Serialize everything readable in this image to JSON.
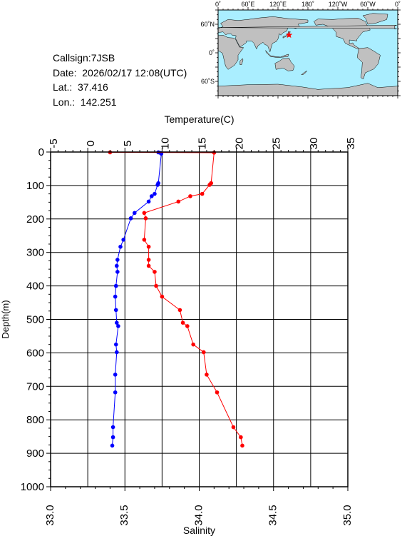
{
  "station": {
    "callsign": "Callsign:7JSB",
    "date": "Date:  2026/02/17 12:08(UTC)",
    "lat": "Lat.:  37.416",
    "lon": "Lon.:  142.251"
  },
  "map": {
    "lon_labels": [
      "0˚",
      "60˚E",
      "120˚E",
      "180˚",
      "120˚W",
      "60˚W",
      "0˚"
    ],
    "lat_labels": [
      "60˚N",
      "0˚",
      "60˚S"
    ],
    "ocean_color": "#aaeeff",
    "land_color": "#c0c0c0",
    "marker": {
      "lat": 37.416,
      "lon": 142.251,
      "color": "#ff0000",
      "symbol": "star"
    }
  },
  "chart_data": {
    "type": "line",
    "top_axis_label": "Temperature(C)",
    "bottom_axis_label": "Salinity",
    "ylabel": "Depth(m)",
    "temperature_ticks": [
      "-5",
      "0",
      "5",
      "10",
      "15",
      "20",
      "25",
      "30",
      "35"
    ],
    "salinity_ticks": [
      "33.0",
      "33.5",
      "34.0",
      "34.5",
      "35.0"
    ],
    "depth_ticks": [
      "0",
      "100",
      "200",
      "300",
      "400",
      "500",
      "600",
      "700",
      "800",
      "900",
      "1000"
    ],
    "temperature_range": [
      -5,
      35
    ],
    "salinity_range": [
      33.0,
      35.0
    ],
    "depth_range": [
      0,
      1000
    ],
    "depth_inverted": true,
    "grid": true,
    "series": [
      {
        "color": "#0000ff",
        "axis": "temperature",
        "points": [
          {
            "t": 9.5,
            "d": 1
          },
          {
            "t": 9.8,
            "d": 3
          },
          {
            "t": 9.9,
            "d": 5
          },
          {
            "t": 9.5,
            "d": 93
          },
          {
            "t": 9.4,
            "d": 98
          },
          {
            "t": 9.0,
            "d": 125
          },
          {
            "t": 8.6,
            "d": 132
          },
          {
            "t": 8.2,
            "d": 148
          },
          {
            "t": 6.3,
            "d": 182
          },
          {
            "t": 5.8,
            "d": 198
          },
          {
            "t": 4.8,
            "d": 262
          },
          {
            "t": 4.4,
            "d": 283
          },
          {
            "t": 4.0,
            "d": 322
          },
          {
            "t": 3.9,
            "d": 340
          },
          {
            "t": 4.0,
            "d": 358
          },
          {
            "t": 3.8,
            "d": 400
          },
          {
            "t": 3.7,
            "d": 432
          },
          {
            "t": 3.8,
            "d": 472
          },
          {
            "t": 3.9,
            "d": 510
          },
          {
            "t": 4.1,
            "d": 520
          },
          {
            "t": 3.8,
            "d": 575
          },
          {
            "t": 3.9,
            "d": 598
          },
          {
            "t": 3.7,
            "d": 665
          },
          {
            "t": 3.7,
            "d": 718
          },
          {
            "t": 3.4,
            "d": 822
          },
          {
            "t": 3.4,
            "d": 852
          },
          {
            "t": 3.3,
            "d": 877
          }
        ]
      },
      {
        "color": "#ff0000",
        "axis": "salinity",
        "points": [
          {
            "s": 33.4,
            "d": 1
          },
          {
            "s": 34.1,
            "d": 2
          },
          {
            "s": 34.08,
            "d": 93
          },
          {
            "s": 34.07,
            "d": 98
          },
          {
            "s": 34.02,
            "d": 125
          },
          {
            "s": 33.94,
            "d": 132
          },
          {
            "s": 33.86,
            "d": 148
          },
          {
            "s": 33.63,
            "d": 182
          },
          {
            "s": 33.64,
            "d": 198
          },
          {
            "s": 33.63,
            "d": 262
          },
          {
            "s": 33.66,
            "d": 283
          },
          {
            "s": 33.66,
            "d": 322
          },
          {
            "s": 33.66,
            "d": 340
          },
          {
            "s": 33.7,
            "d": 358
          },
          {
            "s": 33.71,
            "d": 400
          },
          {
            "s": 33.75,
            "d": 432
          },
          {
            "s": 33.87,
            "d": 472
          },
          {
            "s": 33.89,
            "d": 510
          },
          {
            "s": 33.92,
            "d": 520
          },
          {
            "s": 33.96,
            "d": 575
          },
          {
            "s": 34.03,
            "d": 598
          },
          {
            "s": 34.05,
            "d": 665
          },
          {
            "s": 34.12,
            "d": 718
          },
          {
            "s": 34.23,
            "d": 822
          },
          {
            "s": 34.28,
            "d": 852
          },
          {
            "s": 34.29,
            "d": 877
          }
        ]
      }
    ]
  }
}
